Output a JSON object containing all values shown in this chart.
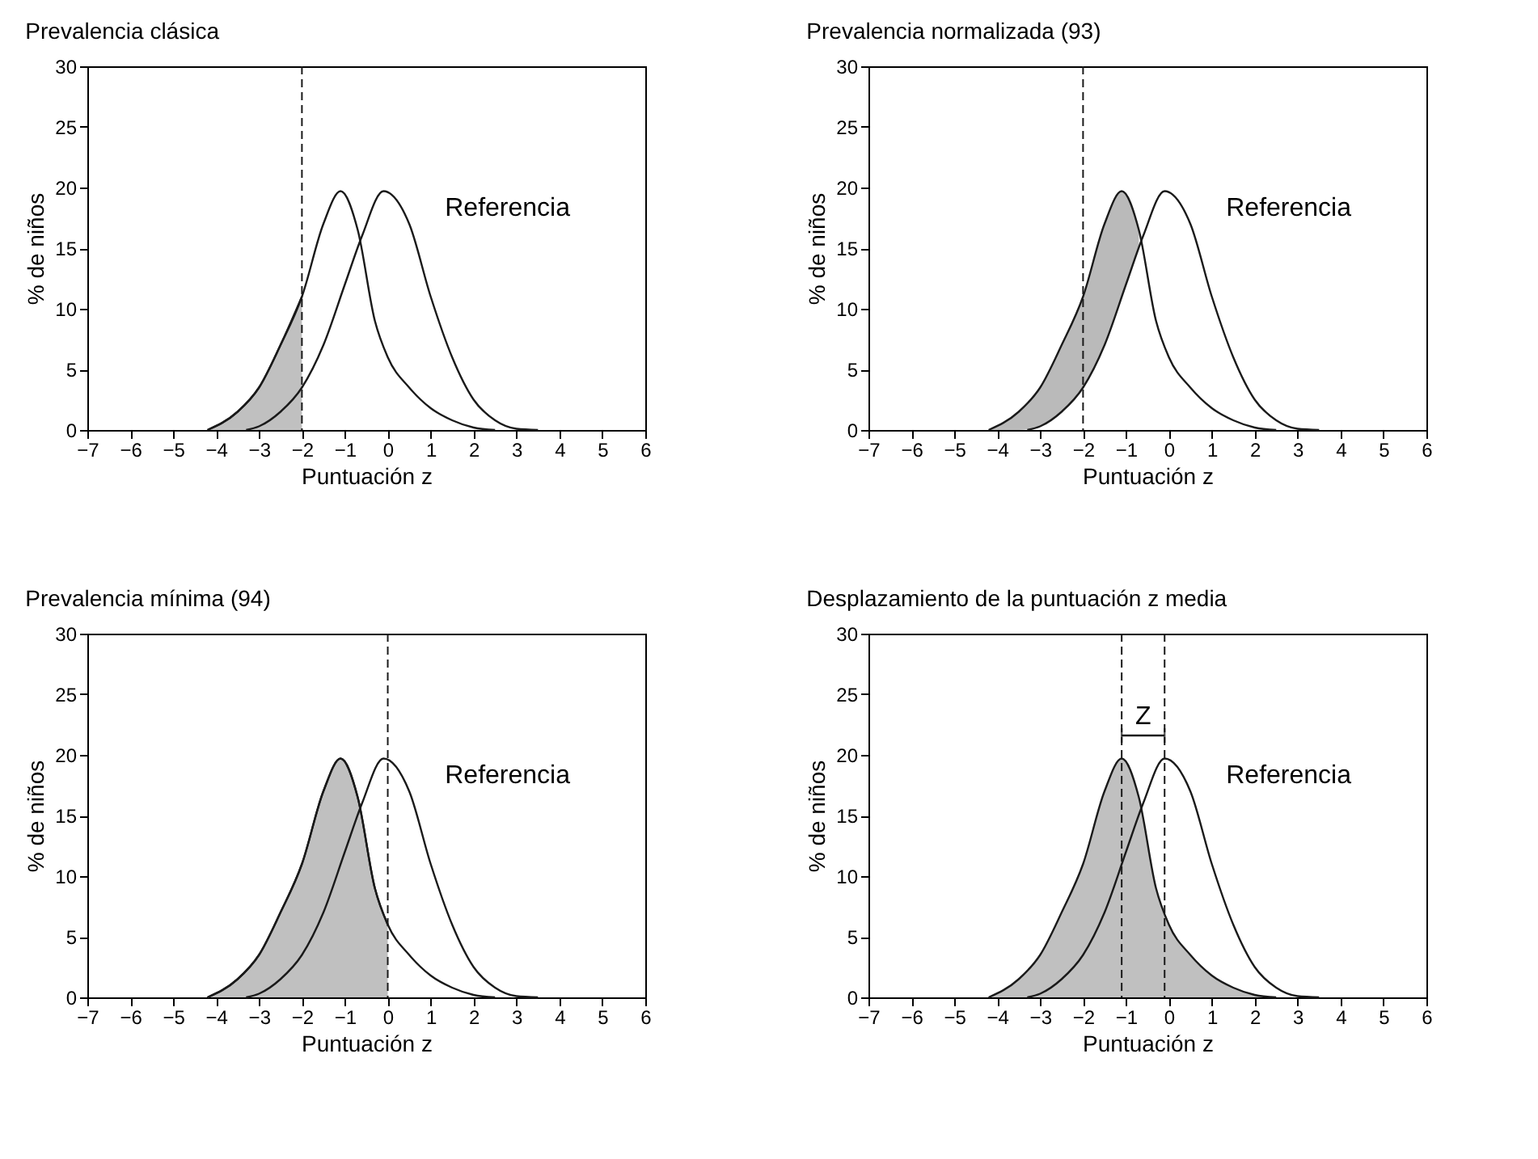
{
  "chart_data": [
    {
      "type": "line",
      "title": "Prevalencia clásica",
      "xlabel": "Puntuación z",
      "ylabel": "% de niños",
      "xlim": [
        -7,
        6
      ],
      "xticks": [
        -7,
        -6,
        -5,
        -4,
        -3,
        -2,
        -1,
        0,
        1,
        2,
        3,
        4,
        5,
        6
      ],
      "ylim": [
        0,
        30
      ],
      "yticks": [
        0,
        5,
        10,
        15,
        20,
        25,
        30
      ],
      "grid": false,
      "series": [
        {
          "type": "area",
          "color": "#b5b5b5",
          "x": [
            -4.2,
            -3.5,
            -3,
            -2.5,
            -2
          ],
          "values": [
            0,
            1.5,
            3.5,
            7,
            11
          ]
        },
        {
          "color": "#1a1a1a",
          "x": [
            -4.2,
            -3.5,
            -3,
            -2.5,
            -2,
            -1.5,
            -1.1,
            -0.7,
            -0.3,
            0,
            0.5,
            1,
            1.5,
            2,
            2.5
          ],
          "values": [
            0,
            1.5,
            3.5,
            7,
            11,
            17,
            19.7,
            16.5,
            9,
            6,
            3.5,
            1.8,
            0.8,
            0.2,
            0
          ]
        },
        {
          "name": "Referencia",
          "color": "#1a1a1a",
          "x": [
            -3.3,
            -3,
            -2.5,
            -2,
            -1.5,
            -1,
            -0.6,
            -0.1,
            0.5,
            1,
            1.5,
            2,
            2.5,
            3,
            3.5
          ],
          "values": [
            0,
            0.3,
            1.5,
            3.5,
            7,
            12,
            16,
            19.7,
            17,
            11,
            6,
            2.5,
            0.8,
            0.1,
            0
          ]
        }
      ],
      "ref_lines": [
        {
          "axis": "x",
          "value": -2,
          "line_style": "dashed",
          "color": "#1a1a1a"
        }
      ]
    },
    {
      "type": "line",
      "title": "Prevalencia normalizada (93)",
      "xlabel": "Puntuación z",
      "ylabel": "% de niños",
      "xlim": [
        -7,
        6
      ],
      "xticks": [
        -7,
        -6,
        -5,
        -4,
        -3,
        -2,
        -1,
        0,
        1,
        2,
        3,
        4,
        5,
        6
      ],
      "ylim": [
        0,
        30
      ],
      "yticks": [
        0,
        5,
        10,
        15,
        20,
        25,
        30
      ],
      "grid": false,
      "series": [
        {
          "color": "#1a1a1a",
          "x": [
            -4.2,
            -3.5,
            -3,
            -2.5,
            -2,
            -1.5,
            -1.1,
            -0.7,
            -0.3,
            0,
            0.5,
            1,
            1.5,
            2,
            2.5
          ],
          "values": [
            0,
            1.5,
            3.5,
            7,
            11,
            17,
            19.7,
            16.5,
            9,
            6,
            3.5,
            1.8,
            0.8,
            0.2,
            0
          ],
          "lower": [
            0,
            0,
            0.3,
            1.5,
            3.5,
            7,
            11,
            15,
            null,
            null,
            null,
            null,
            null,
            null,
            null
          ],
          "upper": [
            0,
            1.5,
            3.5,
            7,
            11,
            17,
            19.7,
            16.5,
            null,
            null,
            null,
            null,
            null,
            null,
            null
          ]
        },
        {
          "name": "Referencia",
          "color": "#1a1a1a",
          "x": [
            -3.3,
            -3,
            -2.5,
            -2,
            -1.5,
            -1,
            -0.6,
            -0.1,
            0.5,
            1,
            1.5,
            2,
            2.5,
            3,
            3.5
          ],
          "values": [
            0,
            0.3,
            1.5,
            3.5,
            7,
            12,
            16,
            19.7,
            17,
            11,
            6,
            2.5,
            0.8,
            0.1,
            0
          ]
        }
      ],
      "ref_lines": [
        {
          "axis": "x",
          "value": -2,
          "line_style": "dashed",
          "color": "#1a1a1a"
        }
      ]
    },
    {
      "type": "line",
      "title": "Prevalencia mínima (94)",
      "xlabel": "Puntuación z",
      "ylabel": "% de niños",
      "xlim": [
        -7,
        6
      ],
      "xticks": [
        -7,
        -6,
        -5,
        -4,
        -3,
        -2,
        -1,
        0,
        1,
        2,
        3,
        4,
        5,
        6
      ],
      "ylim": [
        0,
        30
      ],
      "yticks": [
        0,
        5,
        10,
        15,
        20,
        25,
        30
      ],
      "grid": false,
      "series": [
        {
          "type": "area",
          "color": "#b5b5b5",
          "x": [
            -4.2,
            -3.5,
            -3,
            -2.5,
            -2,
            -1.5,
            -1.1,
            -0.7,
            -0.3,
            0
          ],
          "values": [
            0,
            1.5,
            3.5,
            7,
            11,
            17,
            19.7,
            16.5,
            9,
            6
          ]
        },
        {
          "color": "#1a1a1a",
          "x": [
            -4.2,
            -3.5,
            -3,
            -2.5,
            -2,
            -1.5,
            -1.1,
            -0.7,
            -0.3,
            0,
            0.5,
            1,
            1.5,
            2,
            2.5
          ],
          "values": [
            0,
            1.5,
            3.5,
            7,
            11,
            17,
            19.7,
            16.5,
            9,
            6,
            3.5,
            1.8,
            0.8,
            0.2,
            0
          ]
        },
        {
          "name": "Referencia",
          "color": "#1a1a1a",
          "x": [
            -3.3,
            -3,
            -2.5,
            -2,
            -1.5,
            -1,
            -0.6,
            -0.1,
            0.5,
            1,
            1.5,
            2,
            2.5,
            3,
            3.5
          ],
          "values": [
            0,
            0.3,
            1.5,
            3.5,
            7,
            12,
            16,
            19.7,
            17,
            11,
            6,
            2.5,
            0.8,
            0.1,
            0
          ]
        }
      ],
      "ref_lines": [
        {
          "axis": "x",
          "value": 0,
          "line_style": "dashed",
          "color": "#1a1a1a"
        }
      ]
    },
    {
      "type": "line",
      "title": "Desplazamiento de la puntuación z media",
      "xlabel": "Puntuación z",
      "ylabel": "% de niños",
      "xlim": [
        -7,
        6
      ],
      "xticks": [
        -7,
        -6,
        -5,
        -4,
        -3,
        -2,
        -1,
        0,
        1,
        2,
        3,
        4,
        5,
        6
      ],
      "ylim": [
        0,
        30
      ],
      "yticks": [
        0,
        5,
        10,
        15,
        20,
        25,
        30
      ],
      "grid": false,
      "series": [
        {
          "type": "area",
          "color": "#b5b5b5",
          "x": [
            -4.2,
            -3.5,
            -3,
            -2.5,
            -2,
            -1.5,
            -1.1,
            -0.7,
            -0.3,
            0,
            0.5,
            1,
            1.5,
            2,
            2.5
          ],
          "values": [
            0,
            1.5,
            3.5,
            7,
            11,
            17,
            19.7,
            16.5,
            9,
            6,
            3.5,
            1.8,
            0.8,
            0.2,
            0
          ]
        },
        {
          "name": "Referencia",
          "color": "#1a1a1a",
          "x": [
            -3.3,
            -3,
            -2.5,
            -2,
            -1.5,
            -1,
            -0.6,
            -0.1,
            0.5,
            1,
            1.5,
            2,
            2.5,
            3,
            3.5
          ],
          "values": [
            0,
            0.3,
            1.5,
            3.5,
            7,
            12,
            16,
            19.7,
            17,
            11,
            6,
            2.5,
            0.8,
            0.1,
            0
          ]
        }
      ],
      "ref_lines": [
        {
          "axis": "x",
          "value": -1.1,
          "line_style": "dashed",
          "color": "#1a1a1a"
        },
        {
          "axis": "x",
          "value": -0.1,
          "line_style": "dashed",
          "color": "#1a1a1a"
        }
      ],
      "annotations": [
        "Z"
      ]
    }
  ]
}
